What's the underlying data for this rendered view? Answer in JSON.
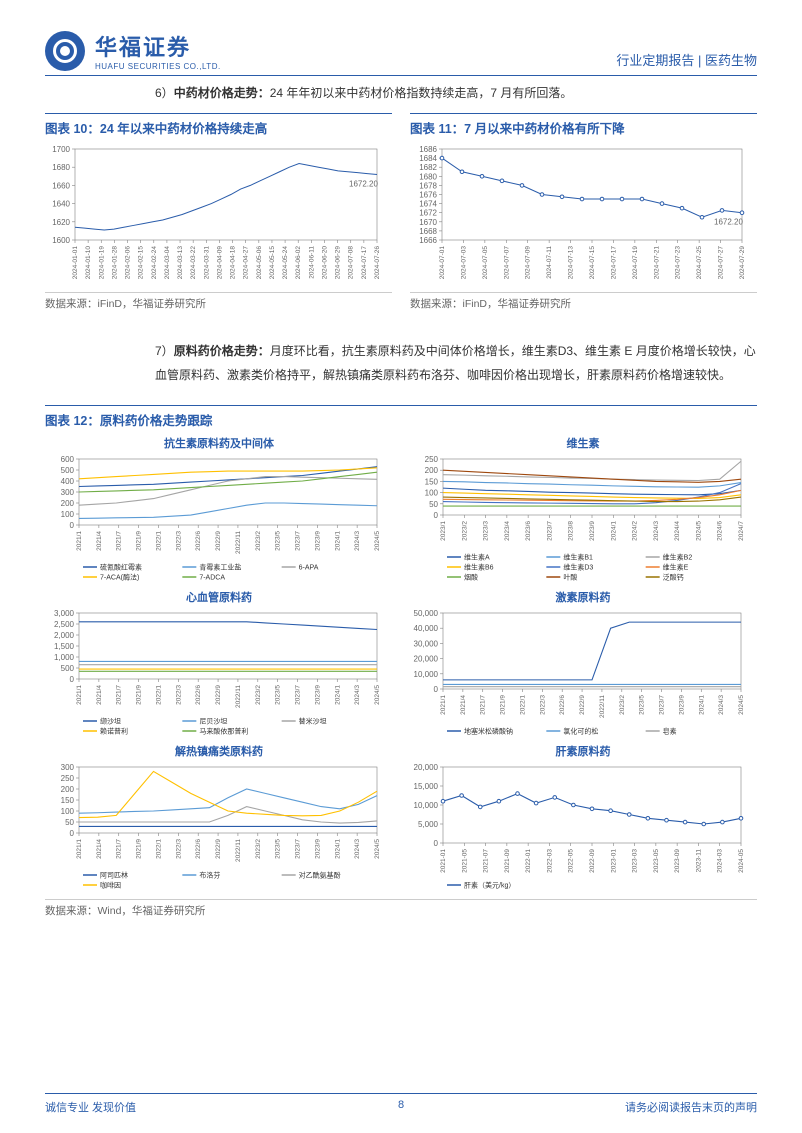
{
  "header": {
    "company_cn": "华福证券",
    "company_en": "HUAFU SECURITIES CO.,LTD.",
    "right": "行业定期报告 | 医药生物"
  },
  "section6": {
    "num": "6）",
    "label": "中药材价格走势：",
    "text": "24 年年初以来中药材价格指数持续走高，7 月有所回落。"
  },
  "chart10": {
    "title": "图表 10：24 年以来中药材价格持续走高",
    "source": "数据来源：iFinD，华福证券研究所",
    "ylim": [
      1600,
      1700
    ],
    "yticks": [
      1600,
      1620,
      1640,
      1660,
      1680,
      1700
    ],
    "xticks": [
      "2024-01-01",
      "2024-01-10",
      "2024-01-19",
      "2024-01-28",
      "2024-02-06",
      "2024-02-15",
      "2024-02-24",
      "2024-03-04",
      "2024-03-13",
      "2024-03-22",
      "2024-03-31",
      "2024-04-09",
      "2024-04-18",
      "2024-04-27",
      "2024-05-06",
      "2024-05-15",
      "2024-05-24",
      "2024-06-02",
      "2024-06-11",
      "2024-06-20",
      "2024-06-29",
      "2024-07-08",
      "2024-07-17",
      "2024-07-26"
    ],
    "line_color": "#2a5caa",
    "annotation": "1672.20",
    "series": [
      1614,
      1613,
      1612,
      1611,
      1612,
      1614,
      1616,
      1618,
      1620,
      1622,
      1625,
      1628,
      1632,
      1636,
      1640,
      1645,
      1650,
      1656,
      1660,
      1665,
      1670,
      1675,
      1680,
      1684,
      1682,
      1680,
      1678,
      1676,
      1675,
      1674,
      1673,
      1672
    ]
  },
  "chart11": {
    "title": "图表 11：7 月以来中药材价格有所下降",
    "source": "数据来源：iFinD，华福证券研究所",
    "ylim": [
      1666,
      1686
    ],
    "yticks": [
      1666,
      1668,
      1670,
      1672,
      1674,
      1676,
      1678,
      1680,
      1682,
      1684,
      1686
    ],
    "xticks": [
      "2024-07-01",
      "2024-07-03",
      "2024-07-05",
      "2024-07-07",
      "2024-07-09",
      "2024-07-11",
      "2024-07-13",
      "2024-07-15",
      "2024-07-17",
      "2024-07-19",
      "2024-07-21",
      "2024-07-23",
      "2024-07-25",
      "2024-07-27",
      "2024-07-29"
    ],
    "line_color": "#2a5caa",
    "annotation": "1672.20",
    "series": [
      1684,
      1681,
      1680,
      1679,
      1678,
      1676,
      1675.5,
      1675,
      1675,
      1675,
      1675,
      1674,
      1673,
      1671,
      1672.5,
      1672
    ]
  },
  "section7": {
    "num": "7）",
    "label": "原料药价格走势：",
    "text": "月度环比看，抗生素原料药及中间体价格增长，维生素D3、维生素 E 月度价格增长较快，心血管原料药、激素类价格持平，解热镇痛类原料药布洛芬、咖啡因价格出现增长，肝素原料药价格增速较快。"
  },
  "chart12": {
    "title": "图表 12：原料药价格走势跟踪",
    "source": "数据来源：Wind，华福证券研究所",
    "panels": [
      {
        "title": "抗生素原料药及中间体",
        "ylim": [
          0,
          600
        ],
        "yticks": [
          0,
          100,
          200,
          300,
          400,
          500,
          600
        ],
        "xticks": [
          "2021/1",
          "2021/4",
          "2021/7",
          "2021/9",
          "2022/1",
          "2022/3",
          "2022/6",
          "2022/9",
          "2022/11",
          "2023/2",
          "2023/5",
          "2023/7",
          "2023/9",
          "2024/1",
          "2024/3",
          "2024/5"
        ],
        "series": [
          {
            "name": "硫氰酸红霉素",
            "color": "#2a5caa",
            "values": [
              350,
              355,
              360,
              365,
              370,
              380,
              390,
              400,
              410,
              420,
              430,
              440,
              450,
              470,
              490,
              510,
              530
            ]
          },
          {
            "name": "青霉素工业盐",
            "color": "#5b9bd5",
            "values": [
              60,
              62,
              65,
              68,
              70,
              80,
              90,
              120,
              150,
              180,
              200,
              200,
              195,
              190,
              185,
              180,
              175
            ]
          },
          {
            "name": "6-APA",
            "color": "#a5a5a5",
            "values": [
              180,
              190,
              200,
              220,
              240,
              280,
              320,
              360,
              400,
              420,
              440,
              440,
              435,
              430,
              425,
              420,
              415
            ]
          },
          {
            "name": "7-ACA(酶法)",
            "color": "#ffc000",
            "values": [
              420,
              430,
              440,
              450,
              460,
              470,
              480,
              485,
              490,
              490,
              490,
              490,
              490,
              495,
              500,
              510,
              520
            ]
          },
          {
            "name": "7-ADCA",
            "color": "#70ad47",
            "values": [
              300,
              305,
              310,
              315,
              320,
              330,
              340,
              350,
              360,
              370,
              380,
              390,
              400,
              420,
              440,
              460,
              480
            ]
          }
        ]
      },
      {
        "title": "维生素",
        "ylim": [
          0,
          250
        ],
        "yticks": [
          0,
          50,
          100,
          150,
          200,
          250
        ],
        "xticks": [
          "2023/1",
          "2023/2",
          "2023/3",
          "2023/4",
          "2023/6",
          "2023/7",
          "2023/8",
          "2023/9",
          "2024/1",
          "2024/2",
          "2024/3",
          "2024/4",
          "2024/5",
          "2024/6",
          "2024/7"
        ],
        "series": [
          {
            "name": "维生素A",
            "color": "#2a5caa",
            "values": [
              120,
              115,
              110,
              108,
              105,
              102,
              100,
              98,
              95,
              93,
              92,
              91,
              90,
              95,
              110
            ]
          },
          {
            "name": "维生素B1",
            "color": "#5b9bd5",
            "values": [
              150,
              148,
              145,
              143,
              140,
              138,
              135,
              133,
              130,
              128,
              126,
              125,
              124,
              130,
              145
            ]
          },
          {
            "name": "维生素B2",
            "color": "#a5a5a5",
            "values": [
              180,
              178,
              175,
              173,
              170,
              168,
              165,
              163,
              160,
              158,
              156,
              155,
              154,
              160,
              240
            ]
          },
          {
            "name": "维生素B6",
            "color": "#ffc000",
            "values": [
              100,
              98,
              95,
              93,
              90,
              88,
              85,
              83,
              80,
              78,
              76,
              75,
              74,
              78,
              90
            ]
          },
          {
            "name": "维生素D3",
            "color": "#4472c4",
            "values": [
              60,
              58,
              56,
              55,
              54,
              53,
              52,
              51,
              50,
              50,
              55,
              65,
              80,
              100,
              140
            ]
          },
          {
            "name": "维生素E",
            "color": "#ed7d31",
            "values": [
              70,
              69,
              68,
              67,
              66,
              65,
              64,
              63,
              62,
              62,
              65,
              70,
              78,
              90,
              110
            ]
          },
          {
            "name": "烟酸",
            "color": "#70ad47",
            "values": [
              40,
              40,
              40,
              40,
              40,
              40,
              40,
              40,
              40,
              40,
              40,
              40,
              40,
              40,
              40
            ]
          },
          {
            "name": "叶酸",
            "color": "#9e480e",
            "values": [
              200,
              195,
              190,
              185,
              180,
              175,
              170,
              165,
              160,
              155,
              150,
              148,
              146,
              150,
              160
            ]
          },
          {
            "name": "泛酸钙",
            "color": "#997300",
            "values": [
              80,
              78,
              76,
              74,
              72,
              70,
              68,
              66,
              64,
              62,
              60,
              60,
              62,
              68,
              80
            ]
          }
        ]
      },
      {
        "title": "心血管原料药",
        "ylim": [
          0,
          3000
        ],
        "yticks": [
          0,
          500,
          1000,
          1500,
          2000,
          2500,
          3000
        ],
        "xticks": [
          "2021/1",
          "2021/4",
          "2021/7",
          "2021/9",
          "2022/1",
          "2022/3",
          "2022/6",
          "2022/9",
          "2022/11",
          "2023/2",
          "2023/5",
          "2023/7",
          "2023/9",
          "2024/1",
          "2024/3",
          "2024/5"
        ],
        "series": [
          {
            "name": "缬沙坦",
            "color": "#2a5caa",
            "values": [
              2600,
              2600,
              2600,
              2600,
              2600,
              2600,
              2600,
              2600,
              2600,
              2600,
              2550,
              2500,
              2450,
              2400,
              2350,
              2300,
              2250
            ]
          },
          {
            "name": "尼贝沙坦",
            "color": "#5b9bd5",
            "values": [
              800,
              800,
              800,
              800,
              800,
              800,
              800,
              800,
              800,
              800,
              800,
              800,
              800,
              800,
              800,
              800,
              800
            ]
          },
          {
            "name": "替米沙坦",
            "color": "#a5a5a5",
            "values": [
              650,
              650,
              650,
              650,
              650,
              650,
              650,
              650,
              650,
              650,
              650,
              650,
              650,
              650,
              650,
              650,
              650
            ]
          },
          {
            "name": "赖诺普利",
            "color": "#ffc000",
            "values": [
              450,
              450,
              450,
              450,
              450,
              450,
              450,
              450,
              450,
              450,
              450,
              450,
              450,
              450,
              450,
              450,
              450
            ]
          },
          {
            "name": "马来酸依那普利",
            "color": "#70ad47",
            "values": [
              350,
              350,
              350,
              350,
              350,
              350,
              350,
              350,
              350,
              350,
              350,
              350,
              350,
              350,
              350,
              350,
              350
            ]
          }
        ]
      },
      {
        "title": "激素原料药",
        "ylim": [
          0,
          50000
        ],
        "yticks": [
          0,
          10000,
          20000,
          30000,
          40000,
          50000
        ],
        "xticks": [
          "2021/1",
          "2021/4",
          "2021/7",
          "2021/9",
          "2022/1",
          "2022/3",
          "2022/6",
          "2022/9",
          "2022/11",
          "2023/2",
          "2023/5",
          "2023/7",
          "2023/9",
          "2024/1",
          "2024/3",
          "2024/5"
        ],
        "series": [
          {
            "name": "地塞米松磷酸钠",
            "color": "#2a5caa",
            "values": [
              6000,
              6000,
              6000,
              6000,
              6000,
              6000,
              6000,
              6000,
              6000,
              40000,
              44000,
              44000,
              44000,
              44000,
              44000,
              44000,
              44000
            ]
          },
          {
            "name": "氯化可的松",
            "color": "#5b9bd5",
            "values": [
              3000,
              3000,
              3000,
              3000,
              3000,
              3000,
              3000,
              3000,
              3000,
              3000,
              3000,
              3000,
              3000,
              3000,
              3000,
              3000,
              3000
            ]
          },
          {
            "name": "皂素",
            "color": "#a5a5a5",
            "values": [
              1500,
              1500,
              1500,
              1500,
              1500,
              1500,
              1500,
              1500,
              1500,
              1500,
              1500,
              1500,
              1500,
              1500,
              1500,
              1500,
              1500
            ]
          }
        ]
      },
      {
        "title": "解热镇痛类原料药",
        "ylim": [
          0,
          300
        ],
        "yticks": [
          0,
          50,
          100,
          150,
          200,
          250,
          300
        ],
        "xticks": [
          "2021/1",
          "2021/4",
          "2021/7",
          "2021/9",
          "2022/1",
          "2022/3",
          "2022/6",
          "2022/9",
          "2022/11",
          "2023/2",
          "2023/5",
          "2023/7",
          "2023/9",
          "2024/1",
          "2024/3",
          "2024/5"
        ],
        "series": [
          {
            "name": "阿司匹林",
            "color": "#2a5caa",
            "values": [
              30,
              30,
              30,
              30,
              30,
              30,
              30,
              30,
              30,
              30,
              30,
              30,
              30,
              30,
              30,
              30,
              30
            ]
          },
          {
            "name": "布洛芬",
            "color": "#5b9bd5",
            "values": [
              90,
              92,
              95,
              98,
              100,
              105,
              110,
              115,
              160,
              200,
              180,
              160,
              140,
              120,
              110,
              130,
              170
            ]
          },
          {
            "name": "对乙酰氨基酚",
            "color": "#a5a5a5",
            "values": [
              50,
              50,
              50,
              50,
              50,
              50,
              50,
              50,
              80,
              120,
              100,
              80,
              60,
              50,
              45,
              48,
              55
            ]
          },
          {
            "name": "咖啡因",
            "color": "#ffc000",
            "values": [
              70,
              72,
              80,
              180,
              280,
              230,
              180,
              140,
              100,
              90,
              85,
              80,
              78,
              80,
              100,
              140,
              190
            ]
          }
        ]
      },
      {
        "title": "肝素原料药",
        "ylim": [
          0,
          20000
        ],
        "yticks": [
          0,
          5000,
          10000,
          15000,
          20000
        ],
        "xticks": [
          "2021-01",
          "2021-05",
          "2021-07",
          "2021-09",
          "2022-01",
          "2022-03",
          "2022-05",
          "2022-09",
          "2023-01",
          "2023-03",
          "2023-05",
          "2023-09",
          "2023-11",
          "2024-03",
          "2024-05"
        ],
        "series": [
          {
            "name": "肝素（美元/kg）",
            "color": "#2a5caa",
            "values": [
              11000,
              12500,
              9500,
              11000,
              13000,
              10500,
              12000,
              10000,
              9000,
              8500,
              7500,
              6500,
              6000,
              5500,
              5000,
              5500,
              6500
            ]
          }
        ]
      }
    ]
  },
  "footer": {
    "left": "诚信专业  发现价值",
    "page": "8",
    "right": "请务必阅读报告末页的声明"
  },
  "colors": {
    "brand": "#2a5caa",
    "grid": "#d9d9d9",
    "axis": "#808080",
    "text": "#333333"
  }
}
